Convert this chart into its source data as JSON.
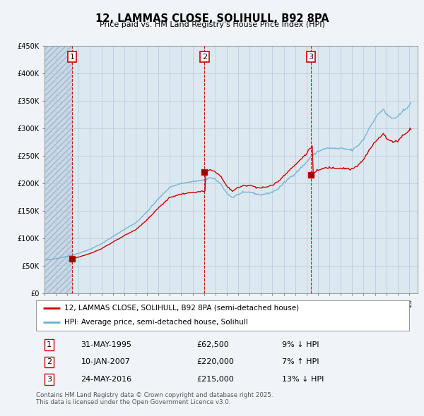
{
  "title": "12, LAMMAS CLOSE, SOLIHULL, B92 8PA",
  "subtitle": "Price paid vs. HM Land Registry's House Price Index (HPI)",
  "ylim": [
    0,
    450000
  ],
  "yticks": [
    0,
    50000,
    100000,
    150000,
    200000,
    250000,
    300000,
    350000,
    400000,
    450000
  ],
  "ytick_labels": [
    "£0",
    "£50K",
    "£100K",
    "£150K",
    "£200K",
    "£250K",
    "£300K",
    "£350K",
    "£400K",
    "£450K"
  ],
  "xlim_start": 1993.0,
  "xlim_end": 2025.75,
  "transactions": [
    {
      "num": 1,
      "date_str": "31-MAY-1995",
      "price": 62500,
      "year": 1995.42,
      "pct": "9%",
      "dir": "↓",
      "rel": -0.09
    },
    {
      "num": 2,
      "date_str": "10-JAN-2007",
      "price": 220000,
      "year": 2007.03,
      "pct": "7%",
      "dir": "↑",
      "rel": 0.07
    },
    {
      "num": 3,
      "date_str": "24-MAY-2016",
      "price": 215000,
      "year": 2016.39,
      "pct": "13%",
      "dir": "↓",
      "rel": -0.13
    }
  ],
  "hpi_color": "#6baed6",
  "price_color": "#cc0000",
  "background_color": "#f0f4f8",
  "plot_bg": "#dce8f0",
  "legend_label_red": "12, LAMMAS CLOSE, SOLIHULL, B92 8PA (semi-detached house)",
  "legend_label_blue": "HPI: Average price, semi-detached house, Solihull",
  "footer": "Contains HM Land Registry data © Crown copyright and database right 2025.\nThis data is licensed under the Open Government Licence v3.0."
}
